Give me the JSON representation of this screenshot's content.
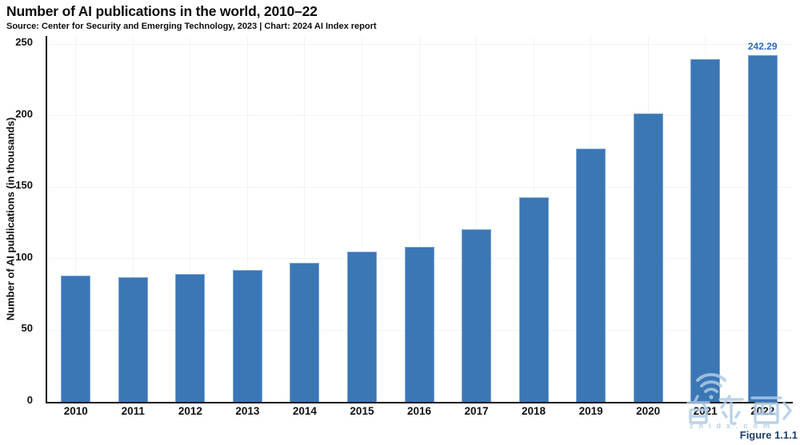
{
  "header": {
    "title": "Number of AI publications in the world, 2010–22",
    "subtitle": "Source: Center for Security and Emerging Technology, 2023 | Chart: 2024 AI Index report"
  },
  "chart_data": {
    "type": "bar",
    "title": "Number of AI publications in the world, 2010–22",
    "xlabel": "",
    "ylabel": "Number of AI publications (in thousands)",
    "categories": [
      "2010",
      "2011",
      "2012",
      "2013",
      "2014",
      "2015",
      "2016",
      "2017",
      "2018",
      "2019",
      "2020",
      "2021",
      "2022"
    ],
    "values": [
      88.0,
      87.3,
      89.5,
      92.3,
      97.0,
      104.8,
      108.3,
      120.7,
      143.0,
      176.8,
      201.6,
      239.2,
      242.29
    ],
    "value_labels": {
      "2022": "242.29"
    },
    "ylim": [
      0,
      250
    ],
    "yticks": [
      0,
      50,
      100,
      150,
      200,
      250
    ],
    "grid": true,
    "legend": "none",
    "bar_color": "#3b76b5",
    "bar_border_color": "#7aa4d2",
    "value_label_color": "#2e6cb5",
    "axis_color": "#141414",
    "gridline_color": "#f2f3f5"
  },
  "footer": {
    "figure_label": "Figure 1.1.1"
  },
  "watermark": {
    "characters": "智东西",
    "url": "zhidx.com",
    "color": "#aecbe6"
  }
}
